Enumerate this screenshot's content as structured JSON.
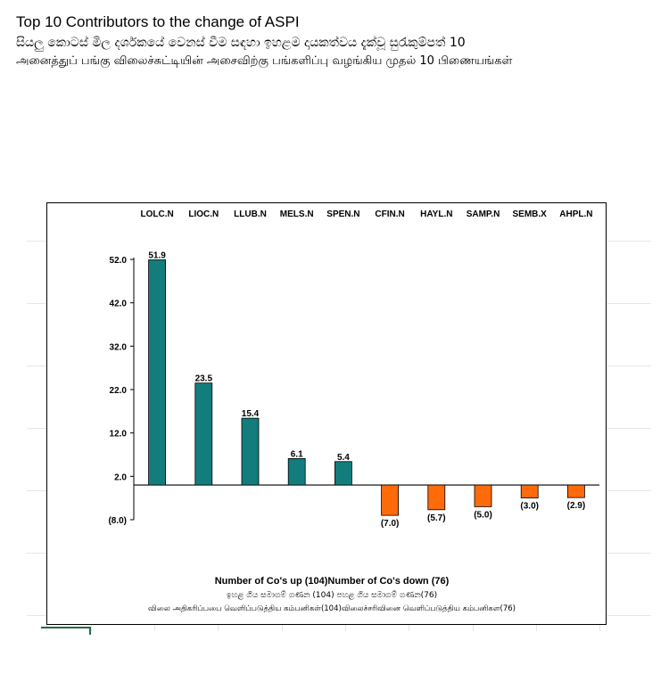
{
  "header": {
    "title": "Top 10 Contributors to the change of ASPI",
    "subtitle_si": "සියලු කොටස් මිල දර්ශකයේ වෙනස් වීම සඳහා ඉහළම දායකත්වය දැක්වූ සුරැකුම්පත් 10",
    "subtitle_ta": "அனைத்துப் பங்கு விலைச்சுட்டியின் அசைவிற்கு பங்களிப்பு வழங்கிய முதல் 10 பிணையங்கள்"
  },
  "colors": {
    "positive": "#137c7c",
    "negative": "#ff6a0a",
    "frame": "#000000"
  },
  "chart_data": {
    "type": "bar",
    "categories": [
      "LOLC.N",
      "LIOC.N",
      "LLUB.N",
      "MELS.N",
      "SPEN.N",
      "CFIN.N",
      "HAYL.N",
      "SAMP.N",
      "SEMB.X",
      "AHPL.N"
    ],
    "values": [
      51.9,
      23.5,
      15.4,
      6.1,
      5.4,
      -7.0,
      -5.7,
      -5.0,
      -3.0,
      -2.9
    ],
    "data_labels": [
      "51.9",
      "23.5",
      "15.4",
      "6.1",
      "5.4",
      "(7.0)",
      "(5.7)",
      "(5.0)",
      "(3.0)",
      "(2.9)"
    ],
    "y_ticks": [
      52.0,
      42.0,
      32.0,
      22.0,
      12.0,
      2.0,
      -8.0
    ],
    "y_tick_labels": [
      "52.0",
      "42.0",
      "32.0",
      "22.0",
      "12.0",
      "2.0",
      "(8.0)"
    ],
    "ylim": [
      -8.0,
      52.0
    ],
    "category_axis_position": "top",
    "grid": false,
    "title": "",
    "xlabel": "",
    "ylabel": ""
  },
  "footer": {
    "line1": "Number of Co's up (104)Number of Co's down  (76)",
    "line2": "ඉහළ ගිය සමාගම් ගණන (104) පහළ ගිය සමාගම් ගණන(76)",
    "line3": "விலை அதிகரிப்பபை வெளிப்படுத்திய கம்பனிகள்(104)விலைச்சரிவினை வெளிப்படுத்திய கம்பனிகள(76)"
  }
}
